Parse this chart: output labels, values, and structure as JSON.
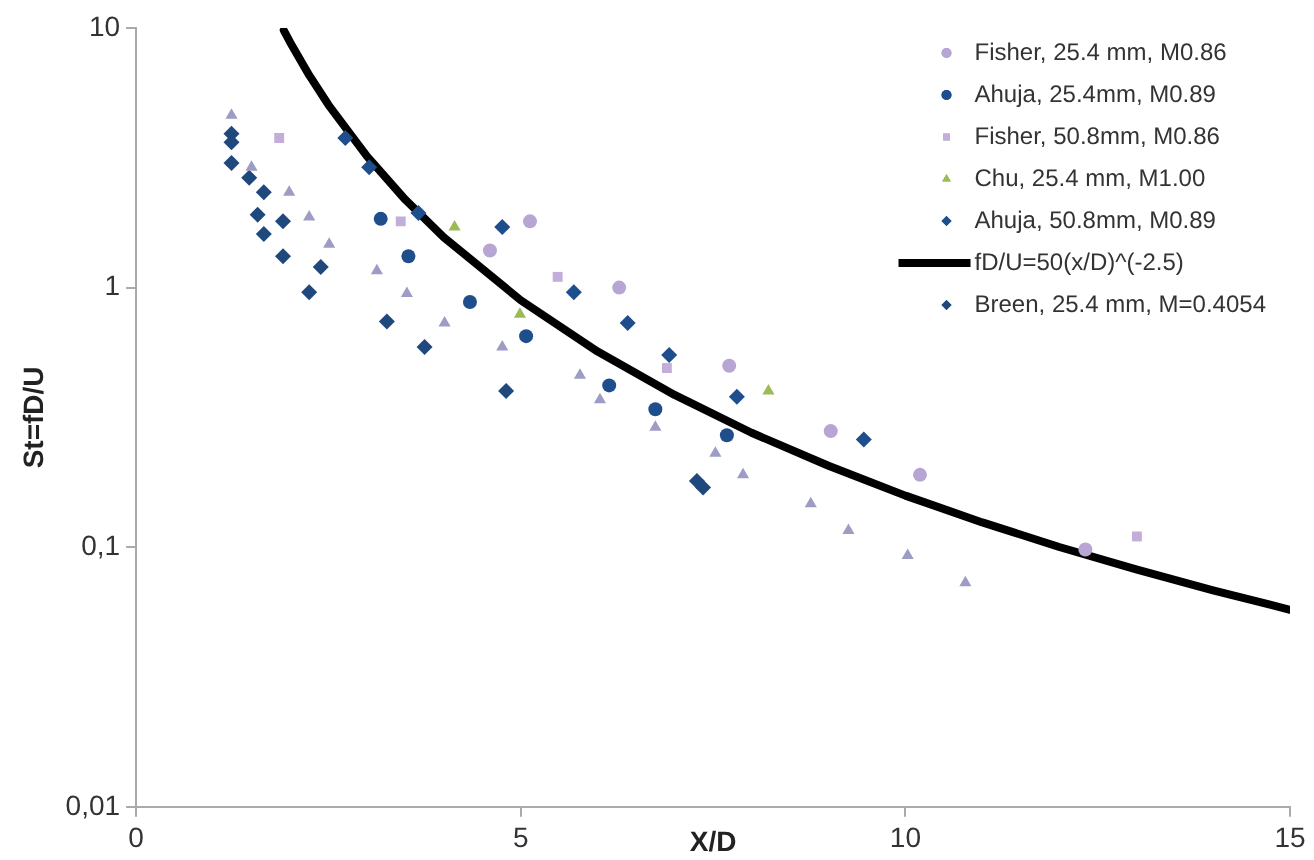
{
  "chart_data": {
    "type": "scatter",
    "xlabel": "X/D",
    "ylabel": "St=fD/U",
    "log": "y",
    "grid": false,
    "legend": "top right",
    "xlim": [
      0,
      15
    ],
    "xticks": [
      0,
      5,
      10,
      15
    ],
    "ylim": [
      0.01,
      10
    ],
    "yticks": [
      {
        "value": 0.01,
        "label": "0,01"
      },
      {
        "value": 0.1,
        "label": "0,1"
      },
      1,
      10
    ],
    "series": [
      {
        "name": "Fisher, 25.4 mm, M0.86",
        "type": "scatter",
        "marker": "circle",
        "color": "#b7a6d4",
        "x": [
          4.6,
          5.12,
          6.28,
          7.71,
          9.03,
          10.19,
          12.34
        ],
        "values": [
          1.39,
          1.8,
          1.0,
          0.5,
          0.28,
          0.19,
          0.098
        ]
      },
      {
        "name": "Ahuja, 25.4mm, M0.89",
        "type": "scatter",
        "marker": "circle",
        "color": "#1f4e8c",
        "x": [
          3.18,
          3.54,
          4.34,
          5.07,
          6.15,
          6.75,
          7.68
        ],
        "values": [
          1.84,
          1.32,
          0.88,
          0.65,
          0.42,
          0.34,
          0.27
        ]
      },
      {
        "name": "Fisher, 50.8mm, M0.86",
        "type": "scatter",
        "marker": "square",
        "color": "#c3aedb",
        "x": [
          1.86,
          3.44,
          5.48,
          6.9,
          13.01
        ],
        "values": [
          3.77,
          1.8,
          1.1,
          0.49,
          0.11
        ]
      },
      {
        "name": "Chu, 25.4 mm, M1.00",
        "type": "scatter",
        "marker": "triangle",
        "color": "#9bbb59",
        "x": [
          4.14,
          4.99,
          8.22
        ],
        "values": [
          1.71,
          0.79,
          0.4
        ]
      },
      {
        "name": "Ahuja, 50.8mm, M0.89",
        "type": "scatter",
        "marker": "diamond",
        "color": "#1f4e8c",
        "x": [
          2.72,
          3.03,
          3.67,
          4.76,
          5.69,
          6.39,
          6.93,
          7.81,
          9.46
        ],
        "values": [
          3.77,
          2.91,
          1.94,
          1.71,
          0.96,
          0.73,
          0.55,
          0.38,
          0.26
        ]
      },
      {
        "name": "fD/U=50(x/D)^(-2.5)",
        "type": "line",
        "marker": "none",
        "line_style": "solid",
        "color": "#000000",
        "x": [
          1.92,
          2,
          2.25,
          2.5,
          3,
          3.5,
          4,
          5,
          6,
          7,
          8,
          9,
          10,
          11,
          12,
          13,
          14,
          15
        ],
        "values": [
          9.79,
          8.84,
          6.58,
          5.06,
          3.21,
          2.18,
          1.5625,
          0.894,
          0.567,
          0.386,
          0.276,
          0.206,
          0.158,
          0.1246,
          0.1002,
          0.0821,
          0.0682,
          0.0574
        ]
      },
      {
        "type": "scatter",
        "marker": "triangle",
        "color": "#9d9cc4",
        "x": [
          1.24,
          1.5,
          1.99,
          2.25,
          2.51,
          3.13,
          3.52,
          4.01,
          4.76,
          5.77,
          6.03,
          6.75,
          7.53,
          7.89,
          8.77,
          9.26,
          10.03,
          10.78
        ],
        "values": [
          4.61,
          2.91,
          2.33,
          1.87,
          1.47,
          1.16,
          0.95,
          0.73,
          0.59,
          0.46,
          0.37,
          0.29,
          0.23,
          0.19,
          0.147,
          0.116,
          0.093,
          0.073
        ]
      },
      {
        "name": "Breen, 25.4 mm, M=0.4054",
        "type": "scatter",
        "marker": "diamond",
        "color": "#1f497d",
        "x": [
          1.24,
          1.24,
          1.24,
          1.47,
          1.66,
          1.58,
          1.91,
          1.66,
          1.91,
          2.4,
          2.25,
          3.26,
          3.75,
          4.81,
          7.29,
          7.37
        ],
        "values": [
          3.91,
          3.63,
          3.02,
          2.65,
          2.33,
          1.91,
          1.8,
          1.61,
          1.32,
          1.2,
          0.96,
          0.74,
          0.59,
          0.4,
          0.18,
          0.17
        ]
      }
    ]
  }
}
